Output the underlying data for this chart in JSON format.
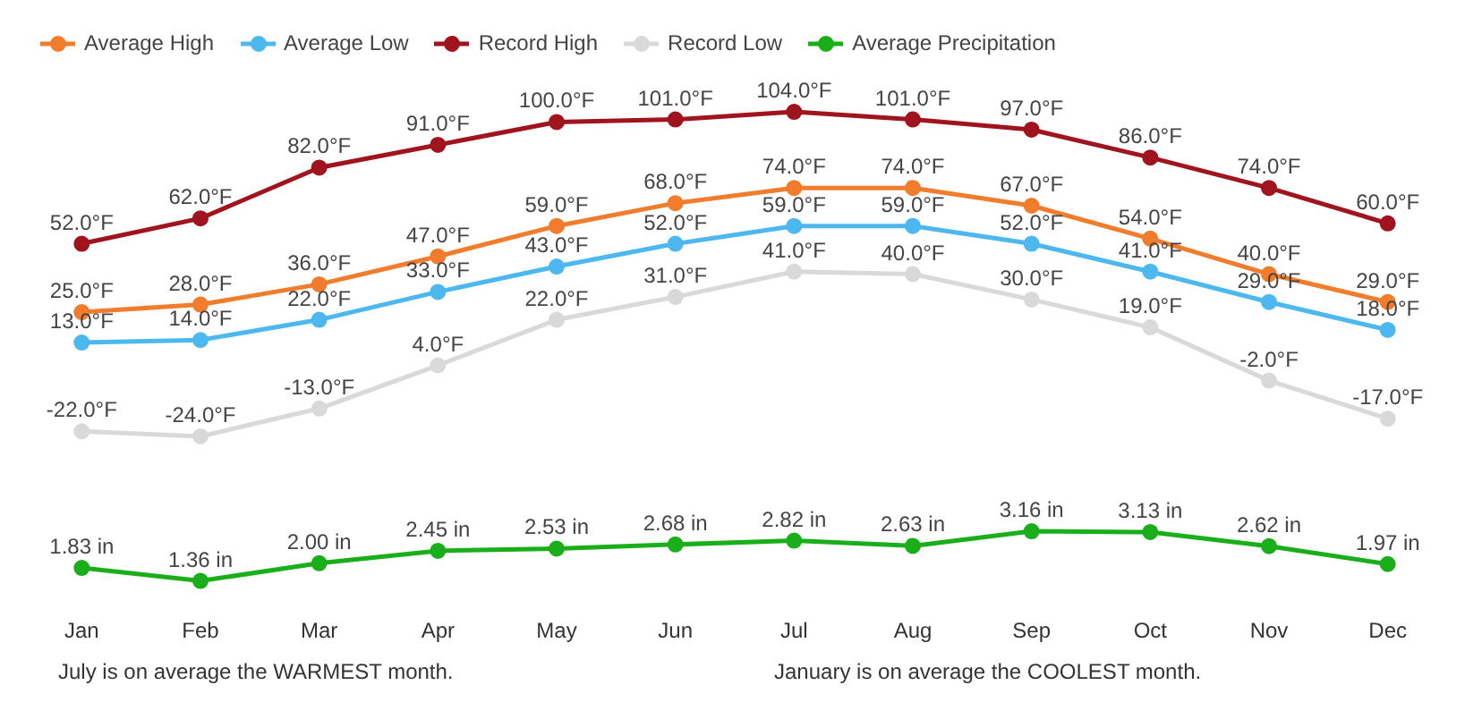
{
  "chart_data": [
    {
      "type": "line",
      "categories": [
        null,
        null,
        null,
        null,
        null,
        null,
        null,
        null,
        null,
        null,
        null,
        null
      ],
      "series": [
        {
          "name": "Average High",
          "color": "#f07c2c",
          "values": [
            25,
            28,
            36,
            47,
            59,
            68,
            74,
            74,
            67,
            54,
            40,
            29
          ],
          "value_labels": [
            "25.0°F",
            "28.0°F",
            "36.0°F",
            "47.0°F",
            "59.0°F",
            "68.0°F",
            "74.0°F",
            "74.0°F",
            "67.0°F",
            "54.0°F",
            "40.0°F",
            "29.0°F"
          ]
        },
        {
          "name": "Average Low",
          "color": "#4db8f0",
          "values": [
            13,
            14,
            22,
            33,
            43,
            52,
            59,
            59,
            52,
            41,
            29,
            18
          ],
          "value_labels": [
            "13.0°F",
            "14.0°F",
            "22.0°F",
            "33.0°F",
            "43.0°F",
            "52.0°F",
            "59.0°F",
            "59.0°F",
            "52.0°F",
            "41.0°F",
            "29.0°F",
            "18.0°F"
          ]
        },
        {
          "name": "Record High",
          "color": "#a0141e",
          "values": [
            52,
            62,
            82,
            91,
            100,
            101,
            104,
            101,
            97,
            86,
            74,
            60
          ],
          "value_labels": [
            "52.0°F",
            "62.0°F",
            "82.0°F",
            "91.0°F",
            "100.0°F",
            "101.0°F",
            "104.0°F",
            "101.0°F",
            "97.0°F",
            "86.0°F",
            "74.0°F",
            "60.0°F"
          ]
        },
        {
          "name": "Record Low",
          "color": "#d9d9d9",
          "values": [
            -22,
            -24,
            -13,
            4,
            22,
            31,
            41,
            40,
            30,
            19,
            -2,
            -17
          ],
          "value_labels": [
            "-22.0°F",
            "-24.0°F",
            "-13.0°F",
            "4.0°F",
            "22.0°F",
            "31.0°F",
            "41.0°F",
            "40.0°F",
            "30.0°F",
            "19.0°F",
            "-2.0°F",
            "-17.0°F"
          ]
        }
      ],
      "legend": "top left",
      "marker": "circle",
      "line_style": "solid",
      "tick_labels": false
    },
    {
      "type": "line",
      "categories": [
        "Jan",
        "Feb",
        "Mar",
        "Apr",
        "May",
        "Jun",
        "Jul",
        "Aug",
        "Sep",
        "Oct",
        "Nov",
        "Dec"
      ],
      "series": [
        {
          "name": "Average Precipitation",
          "color": "#1aaf1a",
          "values": [
            1.83,
            1.36,
            2.0,
            2.45,
            2.53,
            2.68,
            2.82,
            2.63,
            3.16,
            3.13,
            2.62,
            1.97
          ],
          "value_labels": [
            "1.83 in",
            "1.36 in",
            "2.00 in",
            "2.45 in",
            "2.53 in",
            "2.68 in",
            "2.82 in",
            "2.63 in",
            "3.16 in",
            "3.13 in",
            "2.62 in",
            "1.97 in"
          ]
        }
      ],
      "marker": "circle",
      "line_style": "solid",
      "tick_labels": "x"
    },
    {
      "type": "other",
      "annotations": [
        "July is on average the WARMEST month.",
        "January is on average the COOLEST month."
      ]
    }
  ]
}
